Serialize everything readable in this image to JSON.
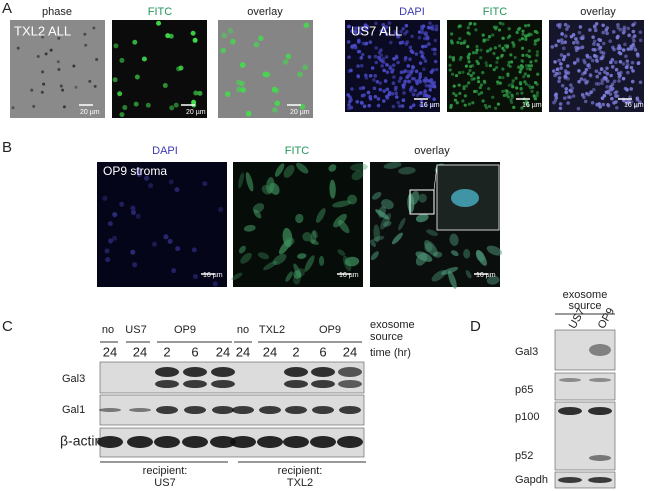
{
  "panel_a": {
    "label": "A",
    "left": {
      "sample": "TXL2 ALL",
      "channels": [
        "phase",
        "FITC",
        "overlay"
      ],
      "scale_bar": "20 µm"
    },
    "right": {
      "sample": "US7 ALL",
      "channels": [
        "DAPI",
        "FITC",
        "overlay"
      ],
      "scale_bar": "16 µm"
    }
  },
  "panel_b": {
    "label": "B",
    "sample": "OP9 stroma",
    "channels": [
      "DAPI",
      "FITC",
      "overlay"
    ],
    "scale_bar": "16 µm"
  },
  "panel_c": {
    "label": "C",
    "header_label": [
      "exosome",
      "source"
    ],
    "time_label": "time (hr)",
    "groups": [
      "no",
      "US7",
      "OP9",
      "no",
      "TXL2",
      "OP9"
    ],
    "times": [
      24,
      24,
      2,
      6,
      24,
      24,
      24,
      2,
      6,
      24
    ],
    "rows": [
      "Gal3",
      "Gal1",
      "β-actin"
    ],
    "recipients": [
      [
        "recipient:",
        "US7"
      ],
      [
        "recipient:",
        "TXL2"
      ]
    ]
  },
  "panel_d": {
    "label": "D",
    "header_label": [
      "exosome",
      "source"
    ],
    "lanes": [
      "US7",
      "OP9"
    ],
    "rows": [
      "Gal3",
      "p65",
      "p100",
      "p52",
      "Gapdh"
    ]
  }
}
